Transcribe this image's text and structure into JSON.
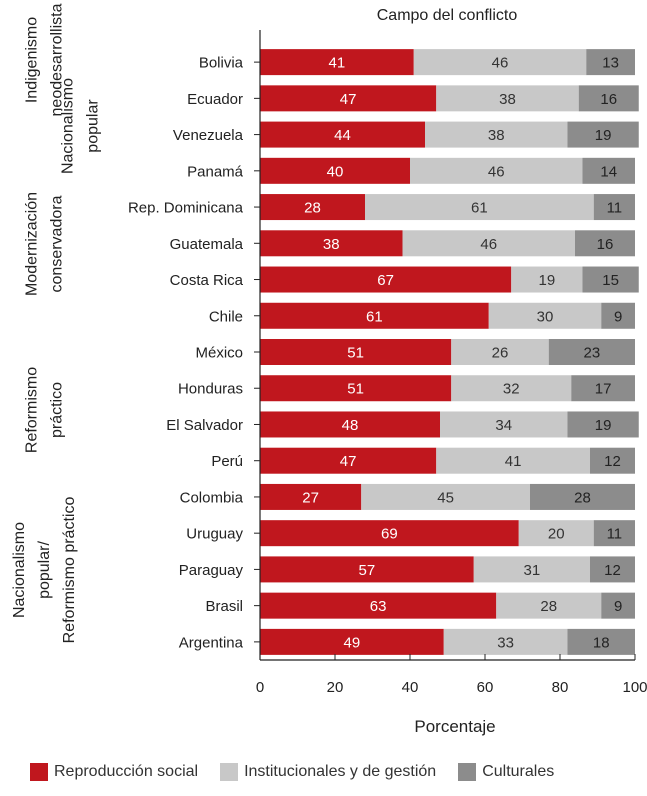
{
  "chart_data": {
    "type": "bar",
    "orientation": "horizontal",
    "stacked": true,
    "title": "Campo del conflicto",
    "xlabel": "Porcentaje",
    "ylabel": "",
    "xlim": [
      0,
      100
    ],
    "xticks": [
      "0",
      "20",
      "40",
      "60",
      "80",
      "100"
    ],
    "categories": [
      "Bolivia",
      "Ecuador",
      "Venezuela",
      "Panamá",
      "Rep. Dominicana",
      "Guatemala",
      "Costa Rica",
      "Chile",
      "México",
      "Honduras",
      "El Salvador",
      "Perú",
      "Colombia",
      "Uruguay",
      "Paraguay",
      "Brasil",
      "Argentina"
    ],
    "series": [
      {
        "name": "Reproducción social",
        "color": "#c0171e",
        "label_color": "#ffffff",
        "values": [
          41,
          47,
          44,
          40,
          28,
          38,
          67,
          61,
          51,
          51,
          48,
          47,
          27,
          69,
          57,
          63,
          49
        ]
      },
      {
        "name": "Institucionales y de gestión",
        "color": "#c8c8c8",
        "label_color": "#333333",
        "values": [
          46,
          38,
          38,
          46,
          61,
          46,
          19,
          30,
          26,
          32,
          34,
          41,
          45,
          20,
          31,
          28,
          33
        ]
      },
      {
        "name": "Culturales",
        "color": "#8c8c8c",
        "label_color": "#222222",
        "values": [
          13,
          16,
          19,
          14,
          11,
          16,
          15,
          9,
          23,
          17,
          19,
          12,
          28,
          11,
          12,
          9,
          18
        ]
      }
    ],
    "groups": [
      {
        "lines": [
          "Indigenismo",
          "neodesarrollista"
        ],
        "from": 0,
        "to": 1
      },
      {
        "lines": [
          "Nacionalismo",
          "popular"
        ],
        "from": 0,
        "to": 3
      },
      {
        "lines": [
          "Modernización",
          "conservadora"
        ],
        "from": 4,
        "to": 7
      },
      {
        "lines": [
          "Reformismo",
          "práctico"
        ],
        "from": 8,
        "to": 11
      },
      {
        "lines": [
          "Nacionalismo",
          "popular/",
          "Reformismo práctico"
        ],
        "from": 13,
        "to": 16
      }
    ],
    "grid": false,
    "legend_position": "bottom"
  }
}
